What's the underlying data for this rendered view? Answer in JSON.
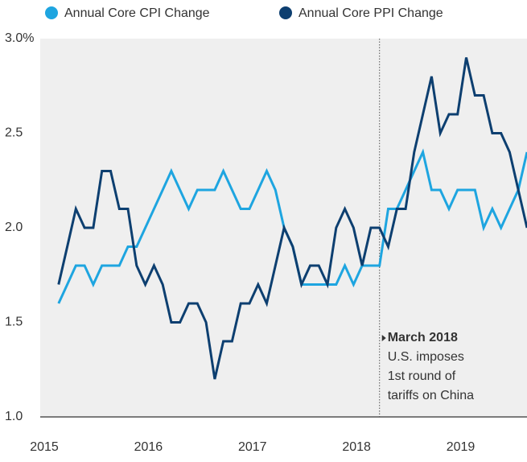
{
  "chart_data": {
    "type": "line",
    "categories": [
      "2015",
      null,
      null,
      null,
      null,
      null,
      null,
      null,
      null,
      null,
      null,
      null,
      "2016",
      null,
      null,
      null,
      null,
      null,
      null,
      null,
      null,
      null,
      null,
      null,
      "2017",
      null,
      null,
      null,
      null,
      null,
      null,
      null,
      null,
      null,
      null,
      null,
      "2018",
      null,
      null,
      null,
      null,
      null,
      null,
      null,
      null,
      null,
      null,
      null,
      "2019",
      null,
      null,
      null,
      null,
      null,
      null,
      null
    ],
    "series": [
      {
        "name": "Annual Core CPI Change",
        "color": "#1ea5e0",
        "values": [
          null,
          1.6,
          1.7,
          1.8,
          1.8,
          1.7,
          1.8,
          1.8,
          1.8,
          1.9,
          1.9,
          2.0,
          2.1,
          2.2,
          2.3,
          2.2,
          2.1,
          2.2,
          2.2,
          2.2,
          2.3,
          2.2,
          2.1,
          2.1,
          2.2,
          2.3,
          2.2,
          2.0,
          1.9,
          1.7,
          1.7,
          1.7,
          1.7,
          1.7,
          1.8,
          1.7,
          1.8,
          1.8,
          1.8,
          2.1,
          2.1,
          2.2,
          2.3,
          2.4,
          2.2,
          2.2,
          2.1,
          2.2,
          2.2,
          2.2,
          2.0,
          2.1,
          2.0,
          2.1,
          2.2,
          2.4
        ]
      },
      {
        "name": "Annual Core PPI Change",
        "color": "#0d3f70",
        "values": [
          null,
          1.7,
          1.9,
          2.1,
          2.0,
          2.0,
          2.3,
          2.3,
          2.1,
          2.1,
          1.8,
          1.7,
          1.8,
          1.7,
          1.5,
          1.5,
          1.6,
          1.6,
          1.5,
          1.2,
          1.4,
          1.4,
          1.6,
          1.6,
          1.7,
          1.6,
          1.8,
          2.0,
          1.9,
          1.7,
          1.8,
          1.8,
          1.7,
          2.0,
          2.1,
          2.0,
          1.8,
          2.0,
          2.0,
          1.9,
          2.1,
          2.1,
          2.4,
          2.6,
          2.8,
          2.5,
          2.6,
          2.6,
          2.9,
          2.7,
          2.7,
          2.5,
          2.5,
          2.4,
          2.2,
          2.0
        ]
      }
    ],
    "ylim": [
      1.0,
      3.0
    ],
    "yticks": [
      {
        "value": 1.0,
        "label": "1.0"
      },
      1.5,
      {
        "value": 2.0,
        "label": "2.0"
      },
      2.5,
      {
        "value": 3.0,
        "label": "3.0%"
      }
    ],
    "annotation": {
      "title": "March 2018",
      "lines": [
        "U.S. imposes",
        "1st round of",
        "tariffs on China"
      ]
    },
    "legend": "top"
  }
}
